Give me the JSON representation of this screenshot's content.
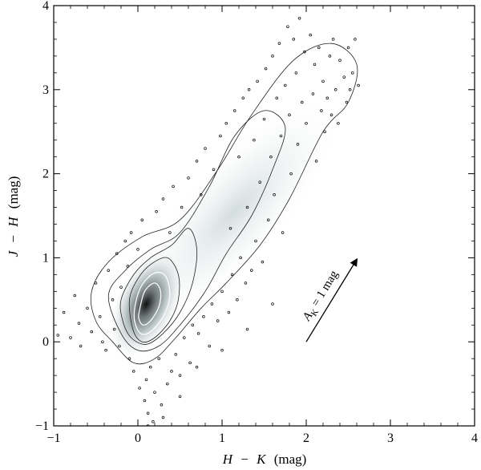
{
  "chart_data": {
    "type": "scatter",
    "subtype": "density-contour",
    "title": "",
    "xlabel_parts": [
      "H",
      "−",
      "K",
      "(mag)"
    ],
    "ylabel_parts": [
      "J",
      "−",
      "H",
      "(mag)"
    ],
    "xlim": [
      -1,
      4
    ],
    "ylim": [
      -1,
      4
    ],
    "xticks": [
      -1,
      0,
      1,
      2,
      3,
      4
    ],
    "yticks": [
      -1,
      0,
      1,
      2,
      3,
      4
    ],
    "xtick_labels": [
      "−1",
      "0",
      "1",
      "2",
      "3",
      "4"
    ],
    "ytick_labels": [
      "−1",
      "0",
      "1",
      "2",
      "3",
      "4"
    ],
    "grid": false,
    "colors": {
      "density_dark": "#1a1a1a",
      "density_light": "#e9eff0",
      "contour": "#222222",
      "points": "#000000"
    },
    "density_core": {
      "x": 0.1,
      "y": 0.45
    },
    "reddening_vector": {
      "label_main": "A",
      "label_sub": "K",
      "label_rest": " = 1 mag",
      "start": [
        2.0,
        0.0
      ],
      "end": [
        2.6,
        0.98
      ]
    },
    "contours": [
      {
        "level": 1,
        "points": [
          [
            -0.55,
            0.6
          ],
          [
            -0.35,
            0.95
          ],
          [
            0.05,
            1.25
          ],
          [
            0.5,
            1.45
          ],
          [
            0.95,
            2.05
          ],
          [
            1.35,
            2.7
          ],
          [
            1.85,
            3.35
          ],
          [
            2.3,
            3.55
          ],
          [
            2.6,
            3.3
          ],
          [
            2.5,
            2.85
          ],
          [
            2.2,
            2.5
          ],
          [
            1.8,
            1.7
          ],
          [
            1.45,
            1.15
          ],
          [
            1.05,
            0.7
          ],
          [
            0.75,
            0.4
          ],
          [
            0.45,
            0.05
          ],
          [
            0.2,
            -0.2
          ],
          [
            -0.05,
            -0.25
          ],
          [
            -0.3,
            0.0
          ],
          [
            -0.5,
            0.25
          ]
        ]
      },
      {
        "level": 2,
        "points": [
          [
            -0.35,
            0.55
          ],
          [
            -0.15,
            0.85
          ],
          [
            0.15,
            1.1
          ],
          [
            0.5,
            1.3
          ],
          [
            0.85,
            1.85
          ],
          [
            1.15,
            2.45
          ],
          [
            1.5,
            2.75
          ],
          [
            1.75,
            2.55
          ],
          [
            1.6,
            2.05
          ],
          [
            1.35,
            1.5
          ],
          [
            1.05,
            1.05
          ],
          [
            0.8,
            0.6
          ],
          [
            0.5,
            0.2
          ],
          [
            0.25,
            -0.05
          ],
          [
            0.0,
            -0.1
          ],
          [
            -0.2,
            0.1
          ]
        ]
      },
      {
        "level": 3,
        "points": [
          [
            -0.2,
            0.5
          ],
          [
            -0.05,
            0.8
          ],
          [
            0.15,
            1.0
          ],
          [
            0.4,
            1.15
          ],
          [
            0.6,
            1.35
          ],
          [
            0.7,
            1.1
          ],
          [
            0.65,
            0.7
          ],
          [
            0.5,
            0.35
          ],
          [
            0.3,
            0.1
          ],
          [
            0.1,
            -0.03
          ],
          [
            -0.08,
            0.05
          ],
          [
            -0.18,
            0.25
          ]
        ]
      },
      {
        "level": 4,
        "points": [
          [
            -0.1,
            0.5
          ],
          [
            0.0,
            0.75
          ],
          [
            0.15,
            0.92
          ],
          [
            0.35,
            1.0
          ],
          [
            0.48,
            0.8
          ],
          [
            0.48,
            0.5
          ],
          [
            0.38,
            0.25
          ],
          [
            0.2,
            0.05
          ],
          [
            0.05,
            0.0
          ],
          [
            -0.06,
            0.15
          ]
        ]
      },
      {
        "level": 5,
        "points": [
          [
            -0.03,
            0.45
          ],
          [
            0.05,
            0.68
          ],
          [
            0.2,
            0.82
          ],
          [
            0.33,
            0.78
          ],
          [
            0.38,
            0.55
          ],
          [
            0.3,
            0.3
          ],
          [
            0.15,
            0.12
          ],
          [
            0.03,
            0.1
          ],
          [
            -0.04,
            0.25
          ]
        ]
      },
      {
        "level": 6,
        "points": [
          [
            0.02,
            0.38
          ],
          [
            0.08,
            0.6
          ],
          [
            0.2,
            0.7
          ],
          [
            0.27,
            0.6
          ],
          [
            0.25,
            0.42
          ],
          [
            0.15,
            0.25
          ],
          [
            0.06,
            0.2
          ],
          [
            0.01,
            0.28
          ]
        ]
      }
    ],
    "points": [
      [
        -0.95,
        0.08
      ],
      [
        -0.88,
        0.35
      ],
      [
        -0.8,
        0.05
      ],
      [
        -0.75,
        0.55
      ],
      [
        -0.7,
        0.22
      ],
      [
        -0.68,
        -0.05
      ],
      [
        -0.6,
        0.4
      ],
      [
        -0.55,
        0.12
      ],
      [
        -0.5,
        0.7
      ],
      [
        -0.45,
        0.3
      ],
      [
        -0.42,
        0.0
      ],
      [
        -0.38,
        -0.1
      ],
      [
        -0.35,
        0.85
      ],
      [
        -0.3,
        0.5
      ],
      [
        -0.28,
        0.15
      ],
      [
        -0.25,
        1.05
      ],
      [
        -0.22,
        -0.05
      ],
      [
        -0.2,
        0.65
      ],
      [
        -0.15,
        1.2
      ],
      [
        -0.12,
        0.9
      ],
      [
        -0.1,
        -0.2
      ],
      [
        -0.08,
        1.3
      ],
      [
        -0.05,
        -0.35
      ],
      [
        0.0,
        1.1
      ],
      [
        0.02,
        -0.55
      ],
      [
        0.05,
        1.45
      ],
      [
        0.08,
        -0.7
      ],
      [
        0.1,
        -0.45
      ],
      [
        0.12,
        -0.85
      ],
      [
        0.15,
        -0.3
      ],
      [
        0.18,
        -0.95
      ],
      [
        0.2,
        -0.6
      ],
      [
        0.22,
        1.55
      ],
      [
        0.25,
        -0.2
      ],
      [
        0.28,
        -0.75
      ],
      [
        0.3,
        1.7
      ],
      [
        0.35,
        -0.5
      ],
      [
        0.38,
        1.3
      ],
      [
        0.4,
        -0.35
      ],
      [
        0.42,
        1.85
      ],
      [
        0.45,
        -0.15
      ],
      [
        0.5,
        -0.4
      ],
      [
        0.52,
        1.6
      ],
      [
        0.55,
        0.05
      ],
      [
        0.6,
        1.95
      ],
      [
        0.62,
        -0.25
      ],
      [
        0.65,
        0.2
      ],
      [
        0.7,
        2.15
      ],
      [
        0.72,
        0.1
      ],
      [
        0.75,
        1.75
      ],
      [
        0.78,
        0.3
      ],
      [
        0.8,
        2.3
      ],
      [
        0.85,
        -0.05
      ],
      [
        0.88,
        0.45
      ],
      [
        0.9,
        2.05
      ],
      [
        0.95,
        0.25
      ],
      [
        0.98,
        2.45
      ],
      [
        1.0,
        0.6
      ],
      [
        1.05,
        2.6
      ],
      [
        1.08,
        0.35
      ],
      [
        1.1,
        1.35
      ],
      [
        1.12,
        0.8
      ],
      [
        1.15,
        2.75
      ],
      [
        1.18,
        0.5
      ],
      [
        1.2,
        2.2
      ],
      [
        1.22,
        1.0
      ],
      [
        1.25,
        2.9
      ],
      [
        1.28,
        0.7
      ],
      [
        1.3,
        1.6
      ],
      [
        1.32,
        3.0
      ],
      [
        1.35,
        0.85
      ],
      [
        1.38,
        2.4
      ],
      [
        1.4,
        1.2
      ],
      [
        1.42,
        3.1
      ],
      [
        1.45,
        1.9
      ],
      [
        1.48,
        0.95
      ],
      [
        1.5,
        2.65
      ],
      [
        1.52,
        3.25
      ],
      [
        1.55,
        1.45
      ],
      [
        1.58,
        2.2
      ],
      [
        1.6,
        3.4
      ],
      [
        1.62,
        1.75
      ],
      [
        1.65,
        2.9
      ],
      [
        1.68,
        3.55
      ],
      [
        1.7,
        2.45
      ],
      [
        1.72,
        1.3
      ],
      [
        1.75,
        3.05
      ],
      [
        1.78,
        3.75
      ],
      [
        1.8,
        2.7
      ],
      [
        1.82,
        2.0
      ],
      [
        1.85,
        3.6
      ],
      [
        1.88,
        3.2
      ],
      [
        1.9,
        2.35
      ],
      [
        1.92,
        3.85
      ],
      [
        1.95,
        2.85
      ],
      [
        1.98,
        3.45
      ],
      [
        2.0,
        2.6
      ],
      [
        2.05,
        3.65
      ],
      [
        2.08,
        2.95
      ],
      [
        2.1,
        3.3
      ],
      [
        2.12,
        2.15
      ],
      [
        2.15,
        3.5
      ],
      [
        2.18,
        2.75
      ],
      [
        2.2,
        3.1
      ],
      [
        2.22,
        2.5
      ],
      [
        2.25,
        2.9
      ],
      [
        2.28,
        3.4
      ],
      [
        2.3,
        2.7
      ],
      [
        2.32,
        3.6
      ],
      [
        2.35,
        3.0
      ],
      [
        2.38,
        2.6
      ],
      [
        2.4,
        3.35
      ],
      [
        2.45,
        3.15
      ],
      [
        2.48,
        2.85
      ],
      [
        2.5,
        3.5
      ],
      [
        2.52,
        3.0
      ],
      [
        2.55,
        3.2
      ],
      [
        2.58,
        3.6
      ],
      [
        2.62,
        3.05
      ],
      [
        1.6,
        0.45
      ],
      [
        1.3,
        0.15
      ],
      [
        1.0,
        -0.1
      ],
      [
        0.7,
        -0.3
      ],
      [
        0.5,
        -0.65
      ],
      [
        0.3,
        -0.9
      ],
      [
        0.12,
        -1.0
      ]
    ]
  }
}
